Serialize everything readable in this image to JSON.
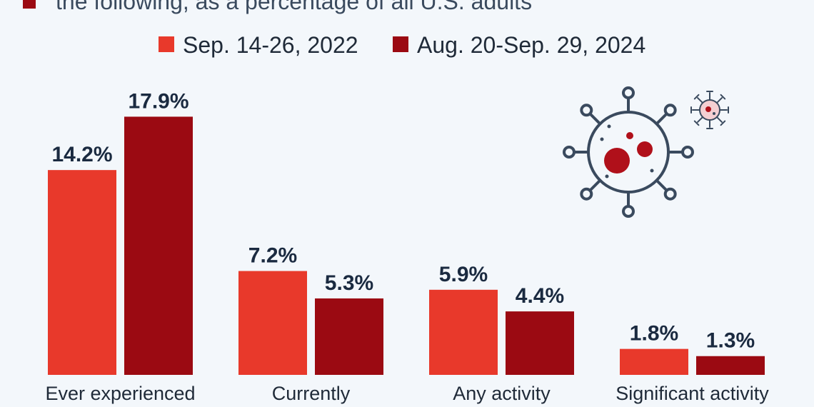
{
  "chart_data": {
    "type": "bar",
    "subtitle": "the following, as a percentage of all U.S. adults",
    "categories": [
      "Ever experienced",
      "Currently",
      "Any activity",
      "Significant activity"
    ],
    "series": [
      {
        "name": "Sep. 14-26, 2022",
        "color": "#e8392b",
        "values": [
          14.2,
          7.2,
          5.9,
          1.8
        ]
      },
      {
        "name": "Aug. 20-Sep. 29, 2024",
        "color": "#9b0a12",
        "values": [
          17.9,
          5.3,
          4.4,
          1.3
        ]
      }
    ],
    "value_suffix": "%",
    "ylim": [
      0,
      20
    ],
    "grid": false,
    "legend": "top-center"
  },
  "icons": {
    "subtitle_marker": "square-marker-icon",
    "virus": "virus-icon",
    "small_virus": "small-virus-icon"
  }
}
